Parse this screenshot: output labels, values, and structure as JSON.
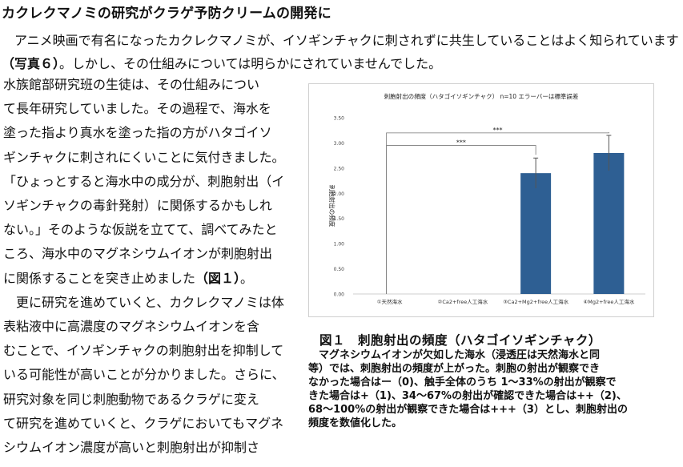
{
  "article": {
    "title": "カクレクマノミの研究がクラゲ予防クリームの開発に",
    "intro_lines": [
      "　アニメ映画で有名になったカクレクマノミが、イソギンチャクに刺されずに共生していることはよく知られています",
      "。しかし、その仕組みについては明らかにされていませんでした。"
    ],
    "intro_ref": "（写真６）",
    "body_lines": [
      "水族館部研究班の生徒は、その仕組みについ",
      "て長年研究していました。その過程で、海水を",
      "塗った指より真水を塗った指の方がハタゴイソ",
      "ギンチャクに刺されにくいことに気付きました。",
      "「ひょっとすると海水中の成分が、刺胞射出（イ",
      "ソギンチャクの毒針発射）に関係するかもしれ",
      "ない。」そのような仮説を立てて、調べてみたと",
      "ころ、海水中のマグネシウムイオンが刺胞射出",
      "に関係することを突き止めました"
    ],
    "body_ref": "（図１）",
    "body_after_ref": "。",
    "body_lines_2": [
      "　更に研究を進めていくと、カクレクマノミは体",
      "表粘液中に高濃度のマグネシウムイオンを含",
      "むことで、イソギンチャクの刺胞射出を抑制して",
      "いる可能性が高いことが分かりました。さらに、",
      "研究対象を同じ刺胞動物であるクラゲに変え",
      "て研究を進めていくと、クラゲにおいてもマグネ",
      "シウムイオン濃度が高いと刺胞射出が抑制さ"
    ]
  },
  "figure": {
    "caption_title": "図１　刺胞射出の頻度（ハタゴイソギンチャク）",
    "caption_lines": [
      "　マグネシウムイオンが欠如した海水（浸透圧は天然海水と同",
      "等）では、刺胞射出の頻度が上がった。刺胞の射出が観察でき",
      "なかった場合はー（0)、触手全体のうち 1～33%の射出が観察で",
      "きた場合は+（1)、34～67%の射出が確認できた場合は++（2)、",
      "68～100%の射出が観察できた場合は+++（3）とし、刺胞射出の",
      "頻度を数値化した。"
    ]
  },
  "chart_data": {
    "type": "bar",
    "title": "刺胞射出の頻度（ハタゴイソギンチャク） n=10 エラーバーは標準誤差",
    "ylabel": "刺胞射出の頻度",
    "xlabel": "",
    "ylim": [
      0,
      3.5
    ],
    "yticks": [
      "0.00",
      "0.50",
      "1.00",
      "1.50",
      "2.00",
      "2.50",
      "3.00",
      "3.50"
    ],
    "categories": [
      "①天然海水",
      "②Ca2+free人工海水",
      "③Ca2+Mg2+free人工海水",
      "④Mg2+free人工海水"
    ],
    "values": [
      0,
      0,
      2.4,
      2.8
    ],
    "errors": [
      0,
      0,
      0.3,
      0.35
    ],
    "bar_color": "#2e5f93",
    "significance": [
      {
        "from": 0,
        "to": 3,
        "label": "***"
      },
      {
        "from": 0,
        "to": 2,
        "label": "***"
      }
    ],
    "grid": false,
    "legend": "none"
  }
}
